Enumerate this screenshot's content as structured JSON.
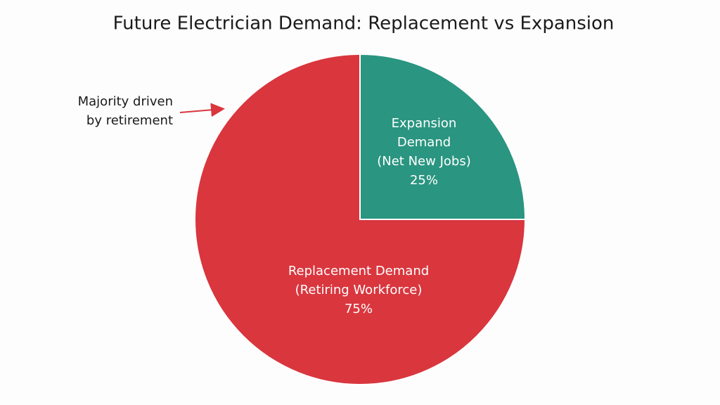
{
  "chart_data": {
    "type": "pie",
    "title": "Future Electrician Demand: Replacement vs Expansion",
    "categories": [
      "Expansion\nDemand\n(Net New Jobs)",
      "Replacement Demand\n(Retiring Workforce)"
    ],
    "values": [
      25,
      75
    ],
    "value_labels": [
      "25%",
      "75%"
    ],
    "colors": [
      "#2a9580",
      "#d9363e"
    ],
    "annotation": "Majority driven\nby retirement"
  }
}
